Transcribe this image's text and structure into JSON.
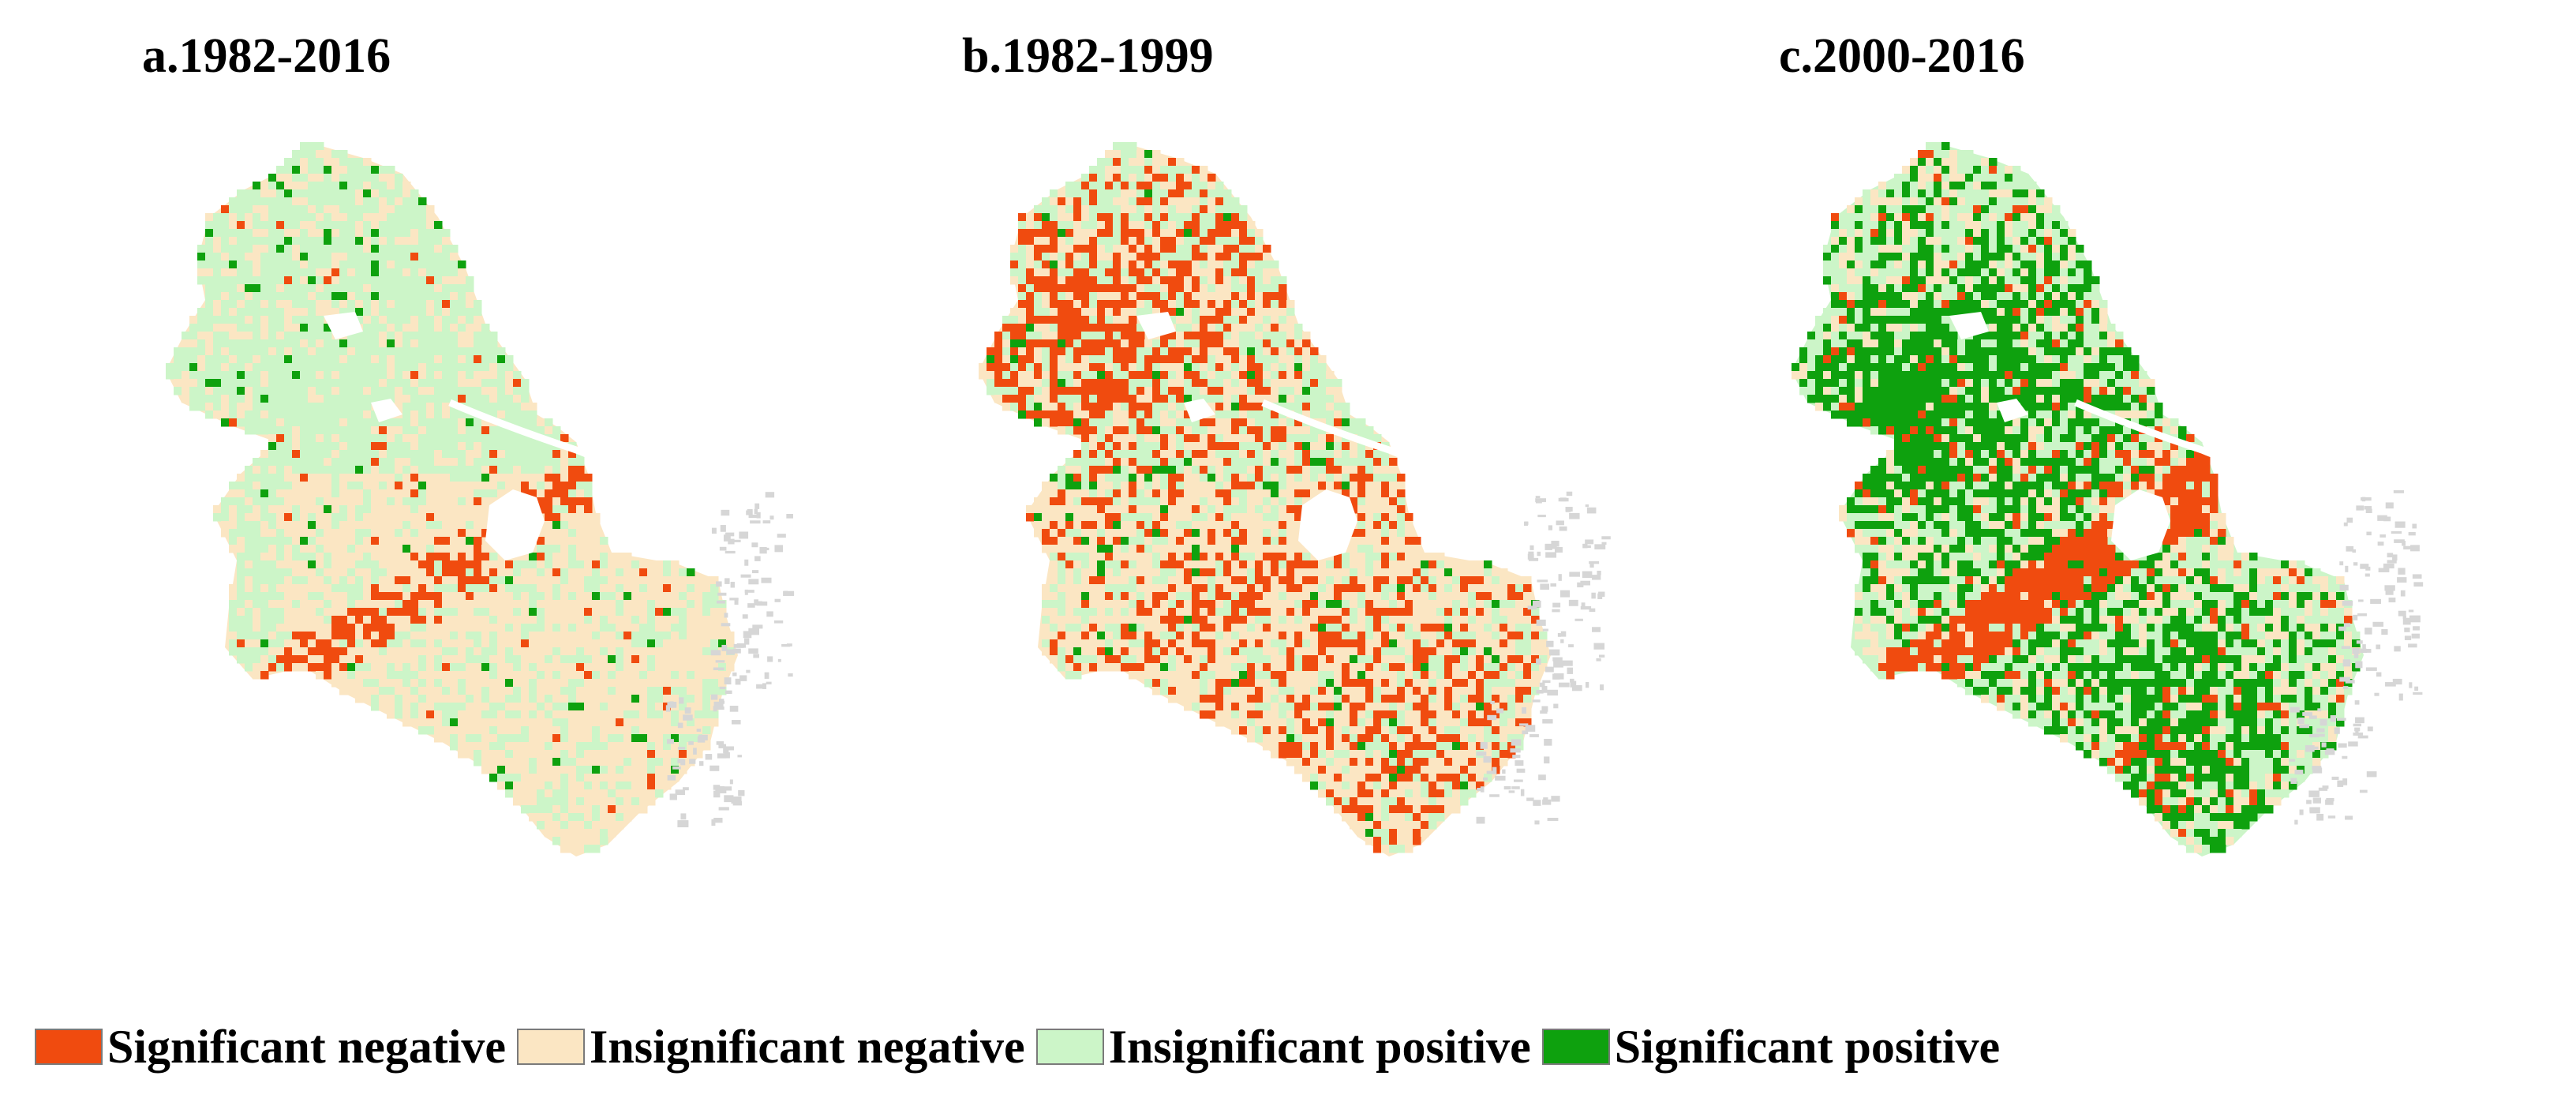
{
  "panels": [
    {
      "id": "a",
      "title": "a.1982-2016",
      "pattern": "mostly-insignificant"
    },
    {
      "id": "b",
      "title": "b.1982-1999",
      "pattern": "negative-dominant"
    },
    {
      "id": "c",
      "title": "c.2000-2016",
      "pattern": "positive-dominant"
    }
  ],
  "legend": [
    {
      "label": "Significant negative",
      "color": "#f04b0f"
    },
    {
      "label": "Insignificant negative",
      "color": "#fbe6c3"
    },
    {
      "label": "Insignificant positive",
      "color": "#ccf5c8"
    },
    {
      "label": "Significant positive",
      "color": "#0ea10e"
    }
  ],
  "colors": {
    "coast": "#d6d6d6",
    "water": "#ffffff"
  }
}
